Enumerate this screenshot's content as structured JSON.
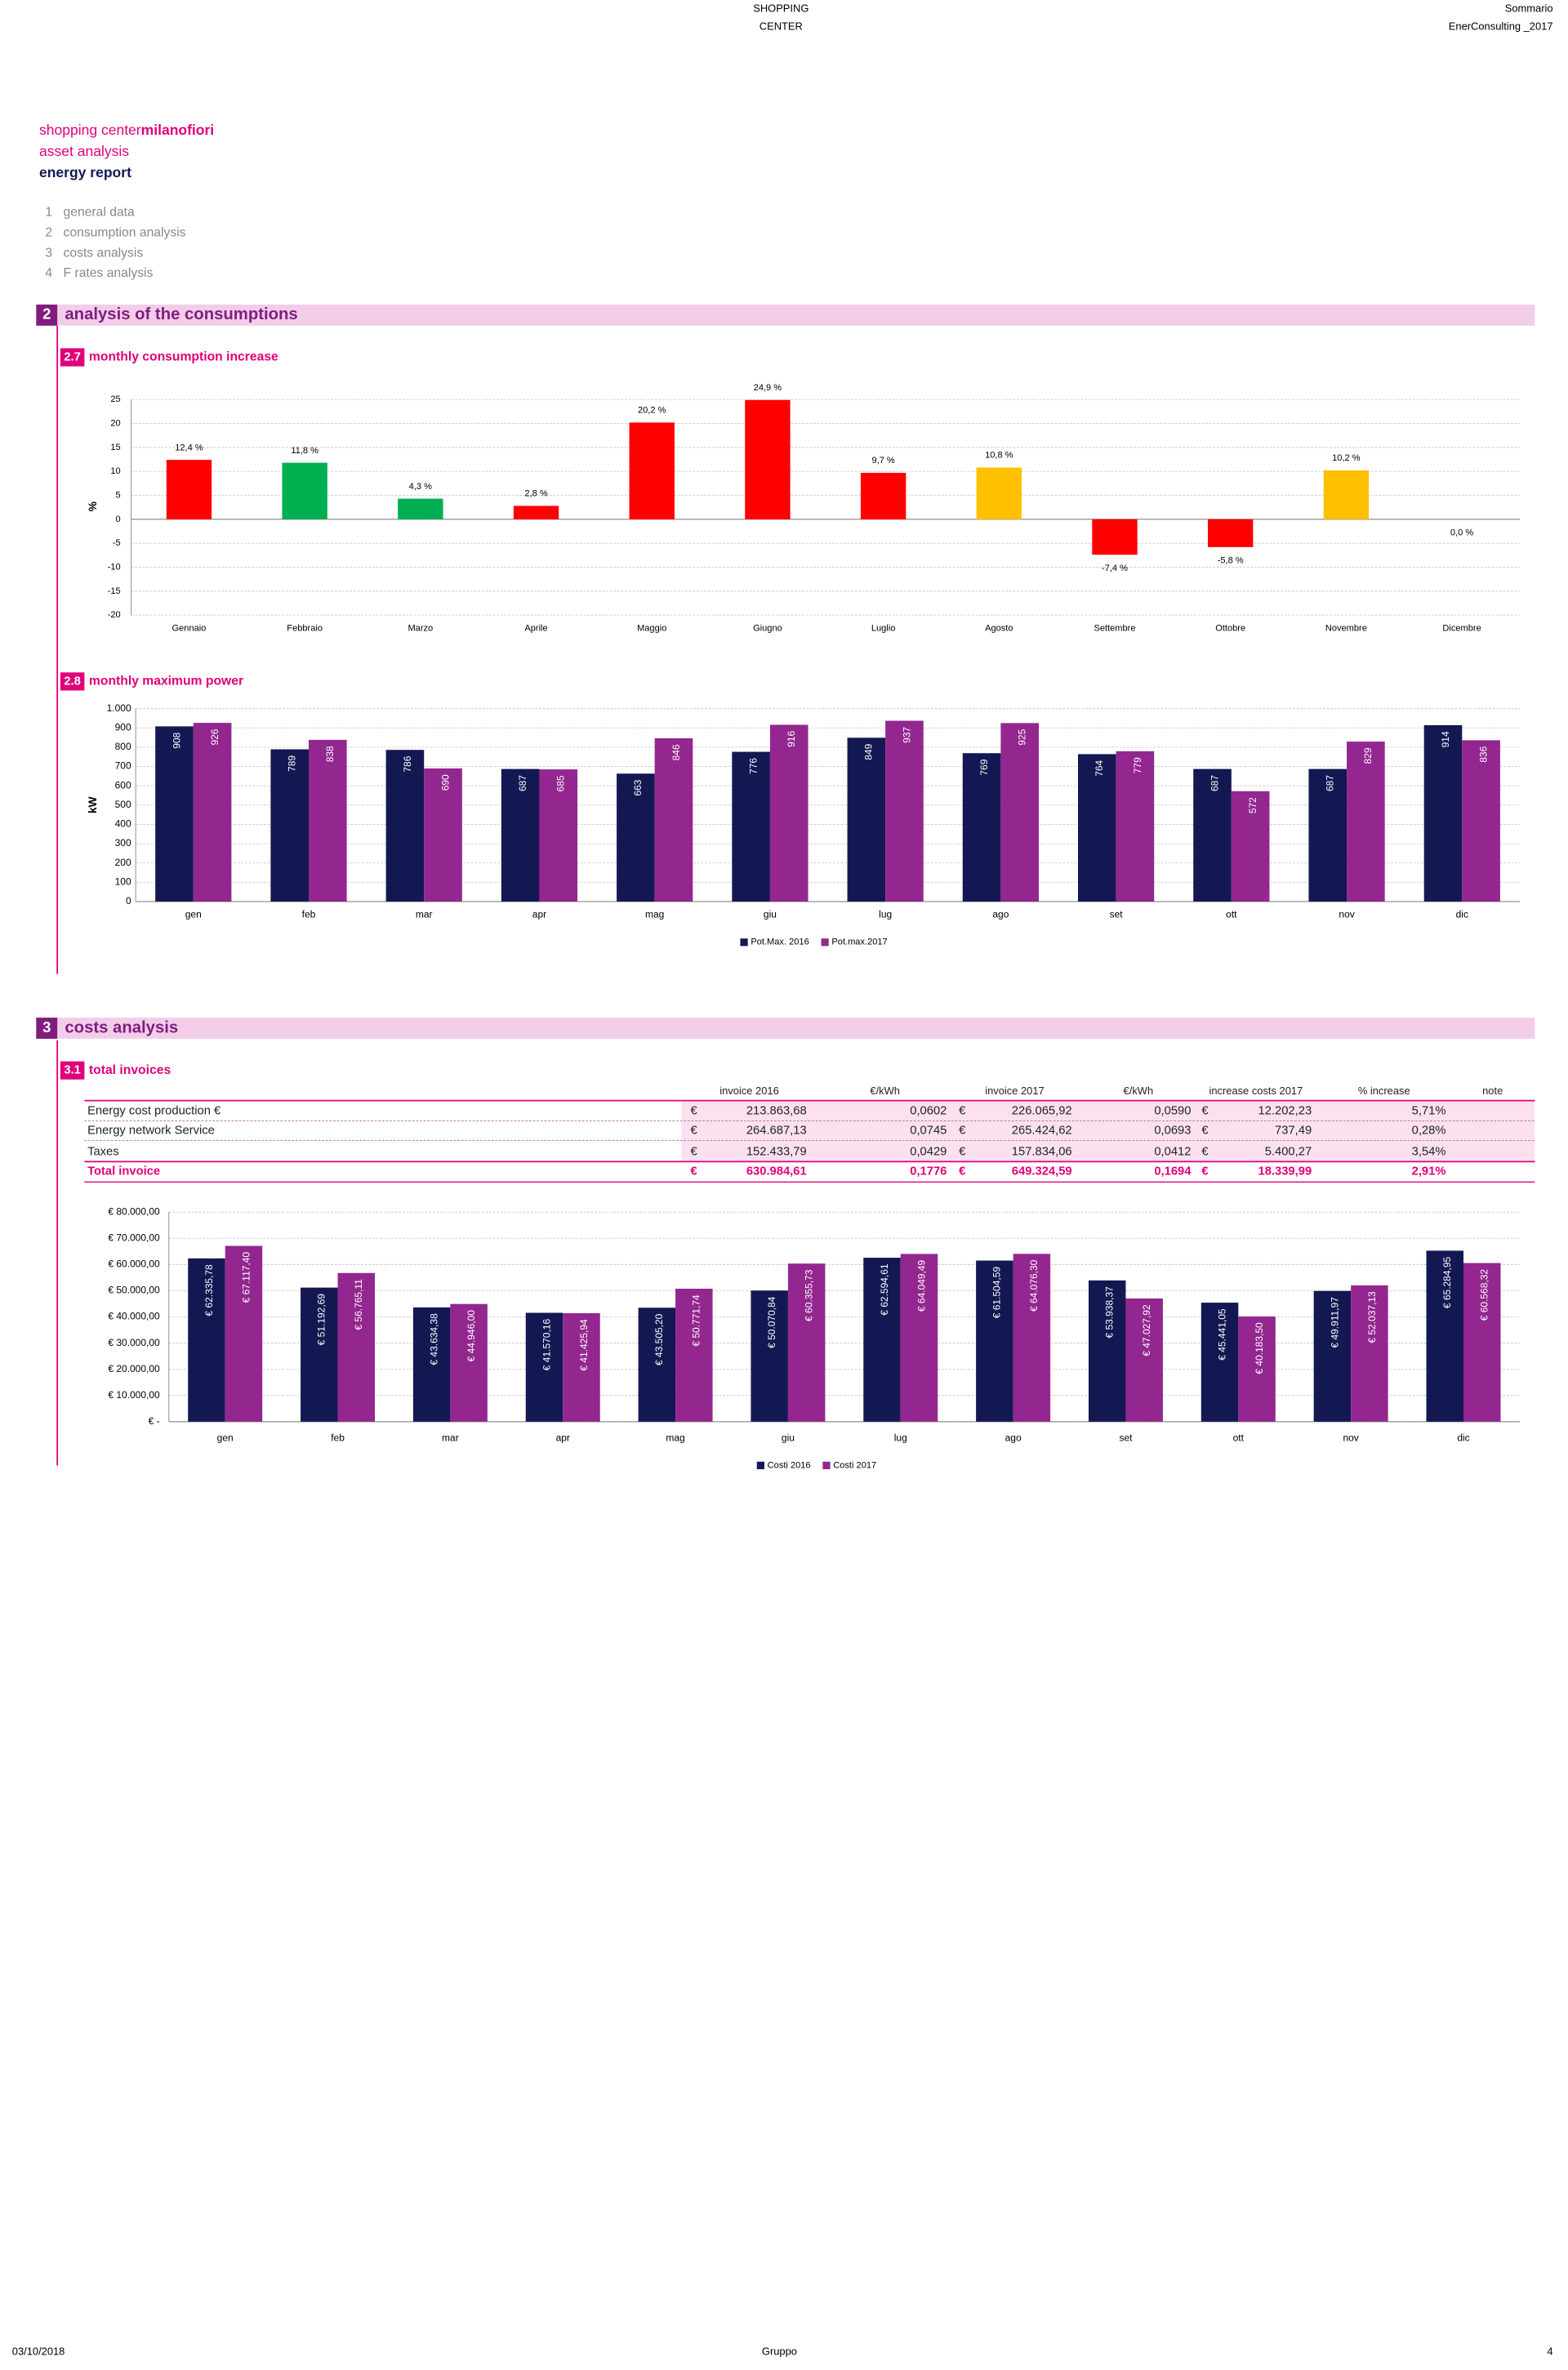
{
  "header": {
    "center": [
      "SHOPPING",
      "CENTER"
    ],
    "right": [
      "Sommario",
      "EnerConsulting _2017"
    ]
  },
  "intro": {
    "line1": "shopping center ",
    "line1_bold": "milanofiori",
    "line2": "asset analysis",
    "line3": "energy report"
  },
  "menu": [
    {
      "number": "1",
      "label": "general data"
    },
    {
      "number": "2",
      "label": "consumption analysis"
    },
    {
      "number": "3",
      "label": "costs analysis"
    },
    {
      "number": "4",
      "label": "F rates analysis"
    }
  ],
  "sections": [
    {
      "number": "2",
      "title": "analysis of the consumptions",
      "subsections": [
        {
          "number": "2.7",
          "title": "monthly consumption increase"
        },
        {
          "number": "2.8",
          "title": "monthly maximum power"
        }
      ]
    },
    {
      "number": "3",
      "title": "costs analysis",
      "subsections": [
        {
          "number": "3.1",
          "title": "total invoices"
        }
      ]
    }
  ],
  "table": {
    "header": [
      "invoice 2016",
      "€/kWh",
      "invoice 2017",
      "€/kWh",
      "increase costs 2017",
      "% increase",
      "note"
    ],
    "rows": [
      [
        "Energy cost production €",
        "€",
        "213.863,68",
        "0,0602",
        "€",
        "226.065,92",
        "0,0590",
        "€",
        "12.202,23",
        "5,71%"
      ],
      [
        "Energy network Service",
        "€",
        "264.687,13",
        "0,0745",
        "€",
        "265.424,62",
        "0,0693",
        "€",
        "737,49",
        "0,28%"
      ],
      [
        "Taxes",
        "€",
        "152.433,79",
        "0,0429",
        "€",
        "157.834,06",
        "0,0412",
        "€",
        "5.400,27",
        "3,54%"
      ]
    ],
    "total": [
      "Total invoice",
      "€",
      "630.984,61",
      "0,1776",
      "€",
      "649.324,59",
      "0,1694",
      "€",
      "18.339,99",
      "2,91%"
    ]
  },
  "chart_data": [
    {
      "type": "bar",
      "y_label": "%",
      "categories": [
        "Gennaio",
        "Febbraio",
        "Marzo",
        "Aprile",
        "Maggio",
        "Giugno",
        "Luglio",
        "Agosto",
        "Settembre",
        "Ottobre",
        "Novembre",
        "Dicembre"
      ],
      "values": [
        12.4,
        11.8,
        4.3,
        2.8,
        20.2,
        24.9,
        9.7,
        10.8,
        -7.4,
        -5.8,
        10.2,
        0.0
      ],
      "value_labels": [
        "12,4 %",
        "11,8 %",
        "4,3 %",
        "2,8 %",
        "20,2 %",
        "24,9 %",
        "9,7 %",
        "10,8 %",
        "-7,4 %",
        "-5,8 %",
        "10,2 %",
        "0,0 %"
      ],
      "colors": [
        "#ff0000",
        "#00b050",
        "#00b050",
        "#ff0000",
        "#ff0000",
        "#ff0000",
        "#ff0000",
        "#ffc000",
        "#ff0000",
        "#ff0000",
        "#ffc000",
        "#ff0000"
      ],
      "ylim": [
        -20,
        25
      ],
      "yticks": [
        -20,
        -15,
        -10,
        -5,
        0,
        5,
        10,
        15,
        20,
        25
      ],
      "grid": true
    },
    {
      "type": "bar",
      "y_label": "kW",
      "categories": [
        "gen",
        "feb",
        "mar",
        "apr",
        "mag",
        "giu",
        "lug",
        "ago",
        "set",
        "ott",
        "nov",
        "dic"
      ],
      "series": [
        {
          "name": "Pot.Max. 2016",
          "color": "#141852",
          "values": [
            908,
            789,
            786,
            687,
            663,
            776,
            849,
            769,
            764,
            687,
            687,
            914
          ]
        },
        {
          "name": "Pot.max.2017",
          "color": "#93278f",
          "values": [
            926,
            838,
            690,
            685,
            846,
            916,
            937,
            925,
            779,
            572,
            829,
            836
          ]
        }
      ],
      "ylim": [
        0,
        1000
      ],
      "yticks": [
        0,
        100,
        200,
        300,
        400,
        500,
        600,
        700,
        800,
        900,
        {
          "value": 1000,
          "label": "1.000"
        }
      ],
      "grid": true
    },
    {
      "type": "bar",
      "categories": [
        "gen",
        "feb",
        "mar",
        "apr",
        "mag",
        "giu",
        "lug",
        "ago",
        "set",
        "ott",
        "nov",
        "dic"
      ],
      "series": [
        {
          "name": "Costi 2016",
          "color": "#141852",
          "values": [
            62335.78,
            51192.69,
            43634.38,
            41570.16,
            43505.2,
            50070.84,
            62594.61,
            61504.59,
            53938.37,
            45441.05,
            49911.97,
            65284.95
          ],
          "value_labels": [
            "€ 62.335,78",
            "€ 51.192,69",
            "€ 43.634,38",
            "€ 41.570,16",
            "€ 43.505,20",
            "€ 50.070,84",
            "€ 62.594,61",
            "€ 61.504,59",
            "€ 53.938,37",
            "€ 45.441,05",
            "€ 49.911,97",
            "€ 65.284,95"
          ]
        },
        {
          "name": "Costi 2017",
          "color": "#93278f",
          "values": [
            67117.4,
            56765.11,
            44946.0,
            41425.94,
            50771.74,
            60355.73,
            64049.49,
            64076.3,
            47027.92,
            40183.5,
            52037.13,
            60568.32
          ],
          "value_labels": [
            "€ 67.117,40",
            "€ 56.765,11",
            "€ 44.946,00",
            "€ 41.425,94",
            "€ 50.771,74",
            "€ 60.355,73",
            "€ 64.049,49",
            "€ 64.076,30",
            "€ 47.027,92",
            "€ 40.183,50",
            "€ 52.037,13",
            "€ 60.568,32"
          ]
        }
      ],
      "ylim": [
        0,
        80000
      ],
      "yticks": [
        {
          "value": 0,
          "label": "€ -"
        },
        {
          "value": 10000,
          "label": "€ 10.000,00"
        },
        {
          "value": 20000,
          "label": "€ 20.000,00"
        },
        {
          "value": 30000,
          "label": "€ 30.000,00"
        },
        {
          "value": 40000,
          "label": "€ 40.000,00"
        },
        {
          "value": 50000,
          "label": "€ 50.000,00"
        },
        {
          "value": 60000,
          "label": "€ 60.000,00"
        },
        {
          "value": 70000,
          "label": "€ 70.000,00"
        },
        {
          "value": 80000,
          "label": "€ 80.000,00"
        }
      ],
      "grid": true
    }
  ],
  "footer": {
    "date": "03/10/2018",
    "center": "Gruppo",
    "page": "4"
  }
}
